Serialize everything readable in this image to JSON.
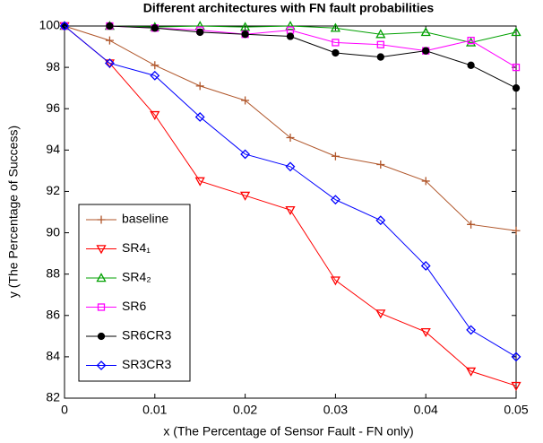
{
  "chart_data": {
    "type": "line",
    "title": "Different architectures with FN fault probabilities",
    "x_label": "x (The Percentage of Sensor Fault - FN only)",
    "y_label": "y (The Percentage of Success)",
    "x": [
      0,
      0.005,
      0.01,
      0.015,
      0.02,
      0.025,
      0.03,
      0.035,
      0.04,
      0.045,
      0.05
    ],
    "xlim": [
      0,
      0.05
    ],
    "xticks": [
      0,
      0.01,
      0.02,
      0.03,
      0.04,
      0.05
    ],
    "ylim": [
      82,
      100
    ],
    "yticks": [
      82,
      84,
      86,
      88,
      90,
      92,
      94,
      96,
      98,
      100
    ],
    "legend": "lower left",
    "series": [
      {
        "name": "baseline",
        "color": "#b0562a",
        "marker": "plus",
        "values": [
          100,
          99.3,
          98.1,
          97.1,
          96.4,
          94.6,
          93.7,
          93.3,
          92.5,
          90.4,
          90.1
        ]
      },
      {
        "name": "SR4₁",
        "color": "#ff0000",
        "marker": "triangle-down",
        "values": [
          100,
          98.2,
          95.7,
          92.5,
          91.8,
          91.1,
          87.7,
          86.1,
          85.2,
          83.3,
          82.6
        ]
      },
      {
        "name": "SR4₂",
        "color": "#00a000",
        "marker": "triangle-up",
        "values": [
          100,
          100,
          99.95,
          100,
          99.95,
          100,
          99.9,
          99.6,
          99.7,
          99.2,
          99.7
        ]
      },
      {
        "name": "SR6",
        "color": "#ff00ff",
        "marker": "square",
        "values": [
          100,
          100,
          99.9,
          99.8,
          99.6,
          99.8,
          99.2,
          99.1,
          98.8,
          99.3,
          98.0
        ]
      },
      {
        "name": "SR6CR3",
        "color": "#000000",
        "marker": "circle",
        "values": [
          100,
          100,
          99.9,
          99.7,
          99.6,
          99.5,
          98.7,
          98.5,
          98.8,
          98.1,
          97.0
        ]
      },
      {
        "name": "SR3CR3",
        "color": "#0000ff",
        "marker": "diamond",
        "values": [
          100,
          98.2,
          97.6,
          95.6,
          93.8,
          93.2,
          91.6,
          90.6,
          88.4,
          85.3,
          84.0
        ]
      }
    ]
  }
}
